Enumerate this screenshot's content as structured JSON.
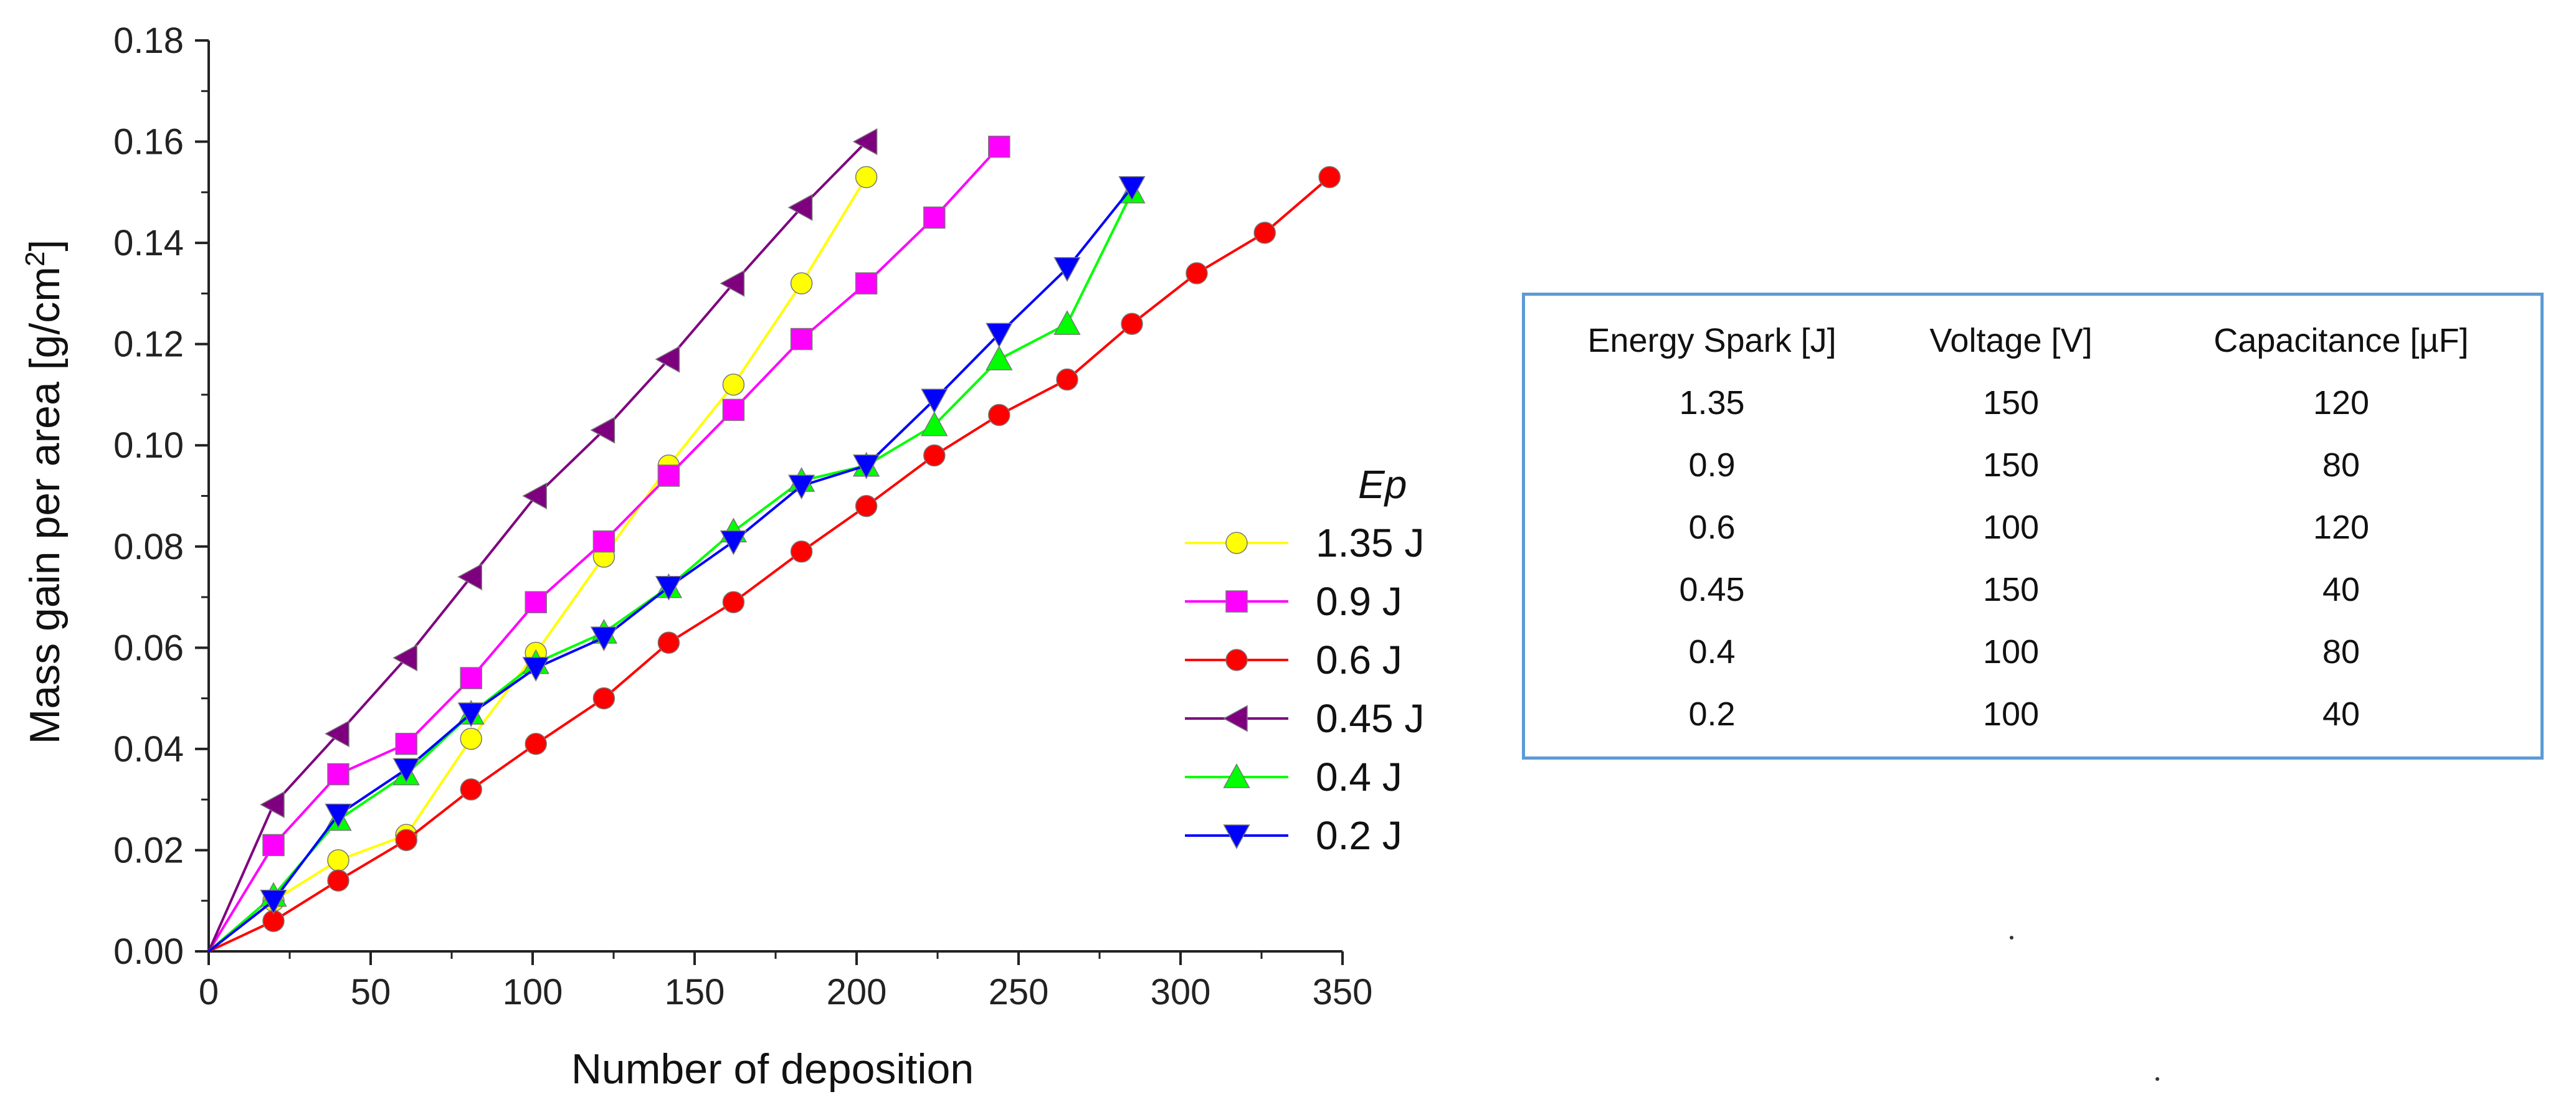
{
  "chart_data": {
    "type": "line",
    "xlabel": "Number of deposition",
    "ylabel": "Mass gain per area [g/cm",
    "ylabel_sup": "2",
    "ylabel_end": "]",
    "xlim": [
      0,
      350
    ],
    "ylim": [
      0,
      0.18
    ],
    "x_ticks": [
      "0",
      "50",
      "100",
      "150",
      "200",
      "250",
      "300",
      "350"
    ],
    "y_ticks": [
      "0.00",
      "0.02",
      "0.04",
      "0.06",
      "0.08",
      "0.10",
      "0.12",
      "0.14",
      "0.16",
      "0.18"
    ],
    "legend_title": "Ep",
    "legend_position": "right",
    "series": [
      {
        "name": "1.35 J",
        "color": "#ffff00",
        "marker": "circle",
        "x": [
          0,
          20,
          40,
          61,
          81,
          101,
          122,
          142,
          162,
          183,
          203
        ],
        "y": [
          0.0,
          0.01,
          0.018,
          0.023,
          0.042,
          0.059,
          0.078,
          0.096,
          0.112,
          0.132,
          0.153
        ]
      },
      {
        "name": "0.9 J",
        "color": "#ff00ff",
        "marker": "square",
        "x": [
          0,
          20,
          40,
          61,
          81,
          101,
          122,
          142,
          162,
          183,
          203,
          224,
          244
        ],
        "y": [
          0.0,
          0.021,
          0.035,
          0.041,
          0.054,
          0.069,
          0.081,
          0.094,
          0.107,
          0.121,
          0.132,
          0.145,
          0.159
        ]
      },
      {
        "name": "0.6 J",
        "color": "#ff0000",
        "marker": "circle",
        "x": [
          0,
          20,
          40,
          61,
          81,
          101,
          122,
          142,
          162,
          183,
          203,
          224,
          244,
          265,
          285,
          305,
          326,
          346
        ],
        "y": [
          0.0,
          0.006,
          0.014,
          0.022,
          0.032,
          0.041,
          0.05,
          0.061,
          0.069,
          0.079,
          0.088,
          0.098,
          0.106,
          0.113,
          0.124,
          0.134,
          0.142,
          0.153
        ]
      },
      {
        "name": "0.45 J",
        "color": "#7f007f",
        "marker": "triangle-left",
        "x": [
          0,
          20,
          40,
          61,
          81,
          101,
          122,
          142,
          162,
          183,
          203
        ],
        "y": [
          0.0,
          0.029,
          0.043,
          0.058,
          0.074,
          0.09,
          0.103,
          0.117,
          0.132,
          0.147,
          0.16
        ]
      },
      {
        "name": "0.4 J",
        "color": "#00ff00",
        "marker": "triangle-up",
        "x": [
          0,
          20,
          40,
          61,
          81,
          101,
          122,
          142,
          162,
          183,
          203,
          224,
          244,
          265,
          285
        ],
        "y": [
          0.0,
          0.011,
          0.026,
          0.035,
          0.047,
          0.057,
          0.063,
          0.072,
          0.083,
          0.093,
          0.096,
          0.104,
          0.117,
          0.124,
          0.15
        ]
      },
      {
        "name": "0.2 J",
        "color": "#0000ff",
        "marker": "triangle-down",
        "x": [
          0,
          20,
          40,
          61,
          81,
          101,
          122,
          142,
          162,
          183,
          203,
          224,
          244,
          265,
          285
        ],
        "y": [
          0.0,
          0.01,
          0.027,
          0.036,
          0.047,
          0.056,
          0.062,
          0.072,
          0.081,
          0.092,
          0.096,
          0.109,
          0.122,
          0.135,
          0.151
        ]
      }
    ]
  },
  "table": {
    "headers": [
      "Energy Spark [J]",
      "Voltage [V]",
      "Capacitance [µF]"
    ],
    "rows": [
      [
        "1.35",
        "150",
        "120"
      ],
      [
        "0.9",
        "150",
        "80"
      ],
      [
        "0.6",
        "100",
        "120"
      ],
      [
        "0.45",
        "150",
        "40"
      ],
      [
        "0.4",
        "100",
        "80"
      ],
      [
        "0.2",
        "100",
        "40"
      ]
    ]
  }
}
